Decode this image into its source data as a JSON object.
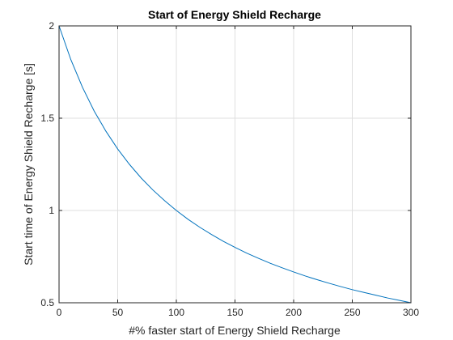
{
  "chart_data": {
    "type": "line",
    "title": "Start of Energy Shield Recharge",
    "xlabel": "#% faster start of Energy Shield Recharge",
    "ylabel": "Start time of Energy Shield Recharge [s]",
    "xlim": [
      0,
      300
    ],
    "ylim": [
      0.5,
      2
    ],
    "x_ticks": [
      0,
      50,
      100,
      150,
      200,
      250,
      300
    ],
    "y_ticks": [
      0.5,
      1,
      1.5,
      2
    ],
    "x_tick_labels": [
      "0",
      "50",
      "100",
      "150",
      "200",
      "250",
      "300"
    ],
    "y_tick_labels": [
      "0.5",
      "1",
      "1.5",
      "2"
    ],
    "grid": true,
    "series": [
      {
        "x": [
          0,
          10,
          20,
          30,
          40,
          50,
          60,
          70,
          80,
          90,
          100,
          110,
          120,
          130,
          140,
          150,
          160,
          170,
          180,
          190,
          200,
          210,
          220,
          230,
          240,
          250,
          260,
          270,
          280,
          290,
          300
        ],
        "y": [
          2.0,
          1.818,
          1.667,
          1.538,
          1.429,
          1.333,
          1.25,
          1.176,
          1.111,
          1.053,
          1.0,
          0.952,
          0.909,
          0.87,
          0.833,
          0.8,
          0.769,
          0.741,
          0.714,
          0.69,
          0.667,
          0.645,
          0.625,
          0.606,
          0.588,
          0.571,
          0.556,
          0.541,
          0.526,
          0.513,
          0.5
        ],
        "color": "#0072BD"
      }
    ]
  }
}
